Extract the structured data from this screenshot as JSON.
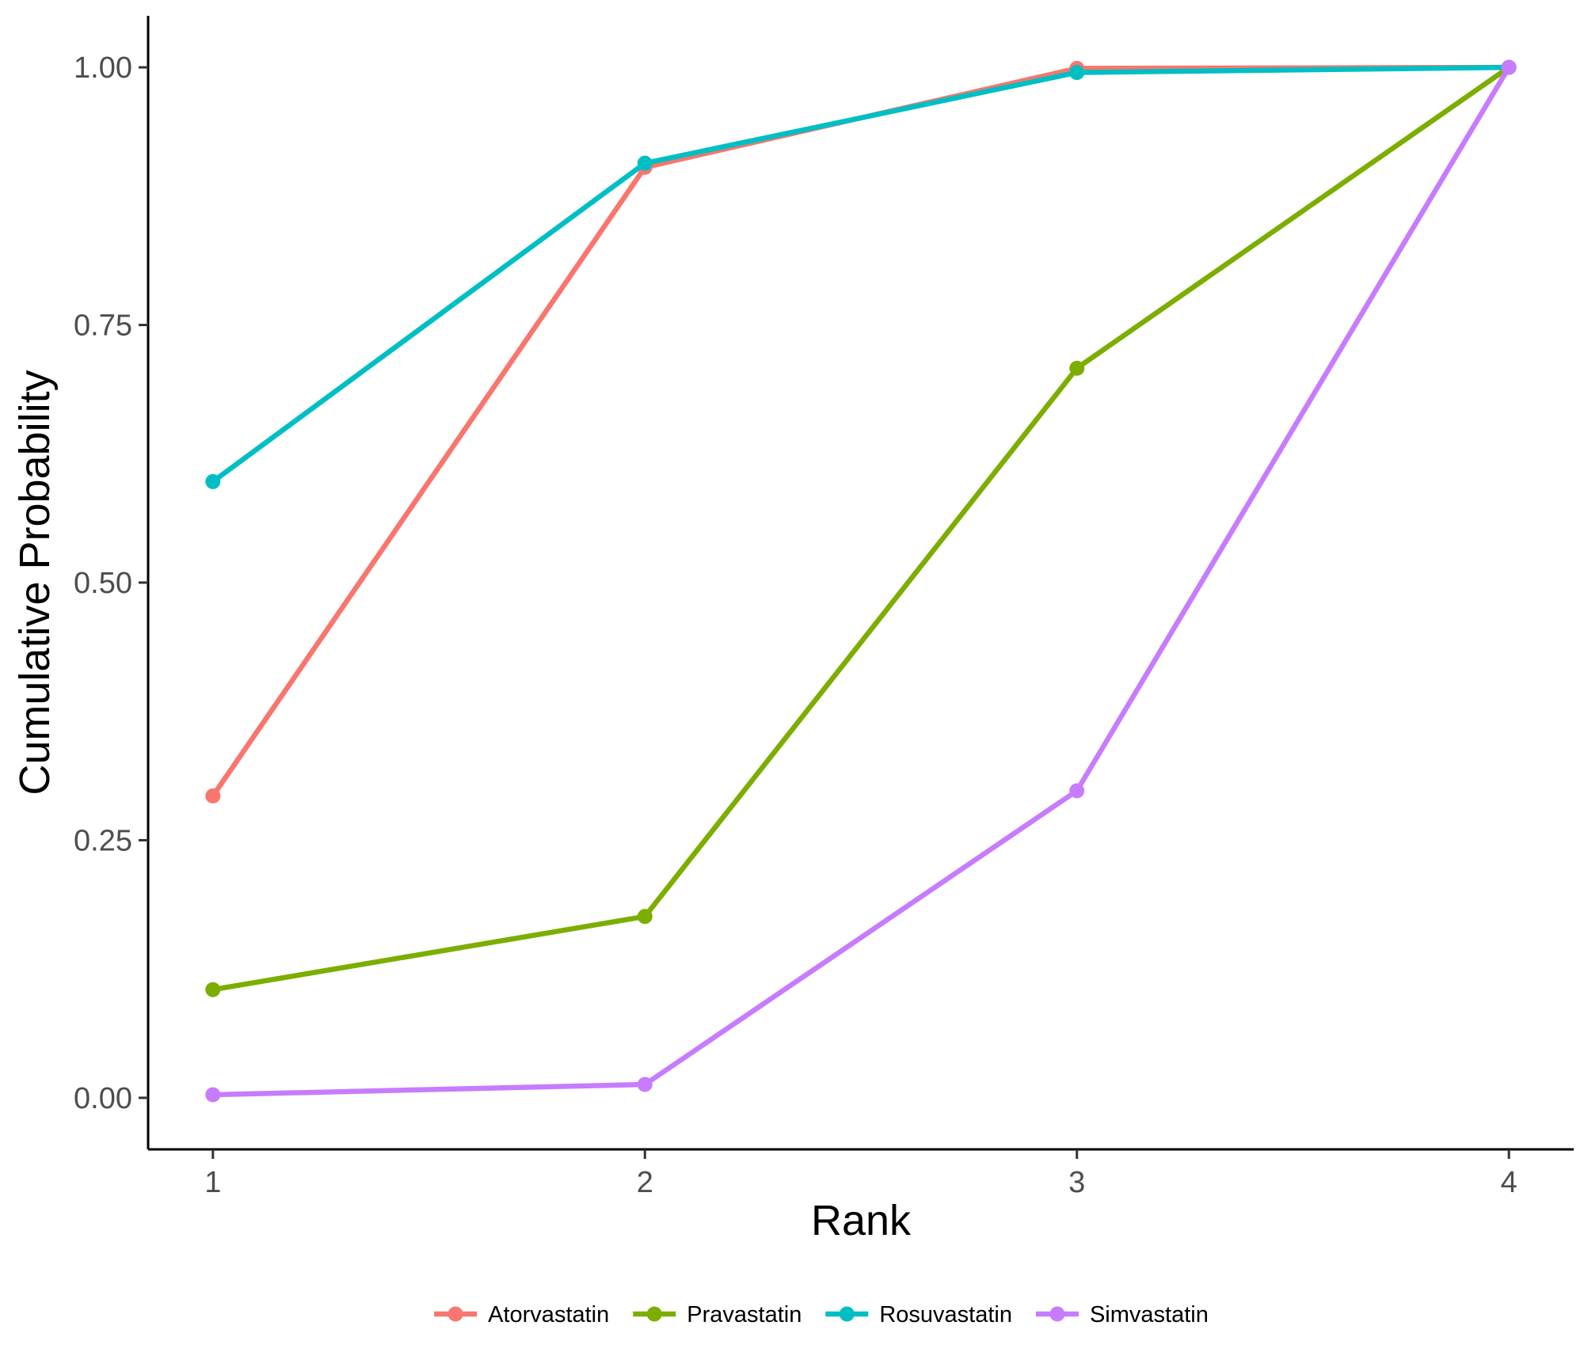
{
  "chart_data": {
    "type": "line",
    "title": "",
    "xlabel": "Rank",
    "ylabel": "Cumulative Probability",
    "x": [
      1,
      2,
      3,
      4
    ],
    "x_ticks": [
      "1",
      "2",
      "3",
      "4"
    ],
    "y_ticks": [
      "0.00",
      "0.25",
      "0.50",
      "0.75",
      "1.00"
    ],
    "xlim": [
      0.85,
      4.15
    ],
    "ylim": [
      -0.05,
      1.05
    ],
    "grid": false,
    "legend_position": "bottom",
    "series": [
      {
        "name": "Atorvastatin",
        "color": "#F8766D",
        "values": [
          0.293,
          0.903,
          0.999,
          1.0
        ]
      },
      {
        "name": "Pravastatin",
        "color": "#7CAE00",
        "values": [
          0.105,
          0.176,
          0.708,
          1.0
        ]
      },
      {
        "name": "Rosuvastatin",
        "color": "#00BFC4",
        "values": [
          0.598,
          0.907,
          0.995,
          1.0
        ]
      },
      {
        "name": "Simvastatin",
        "color": "#C77CFF",
        "values": [
          0.003,
          0.013,
          0.298,
          1.0
        ]
      }
    ]
  }
}
